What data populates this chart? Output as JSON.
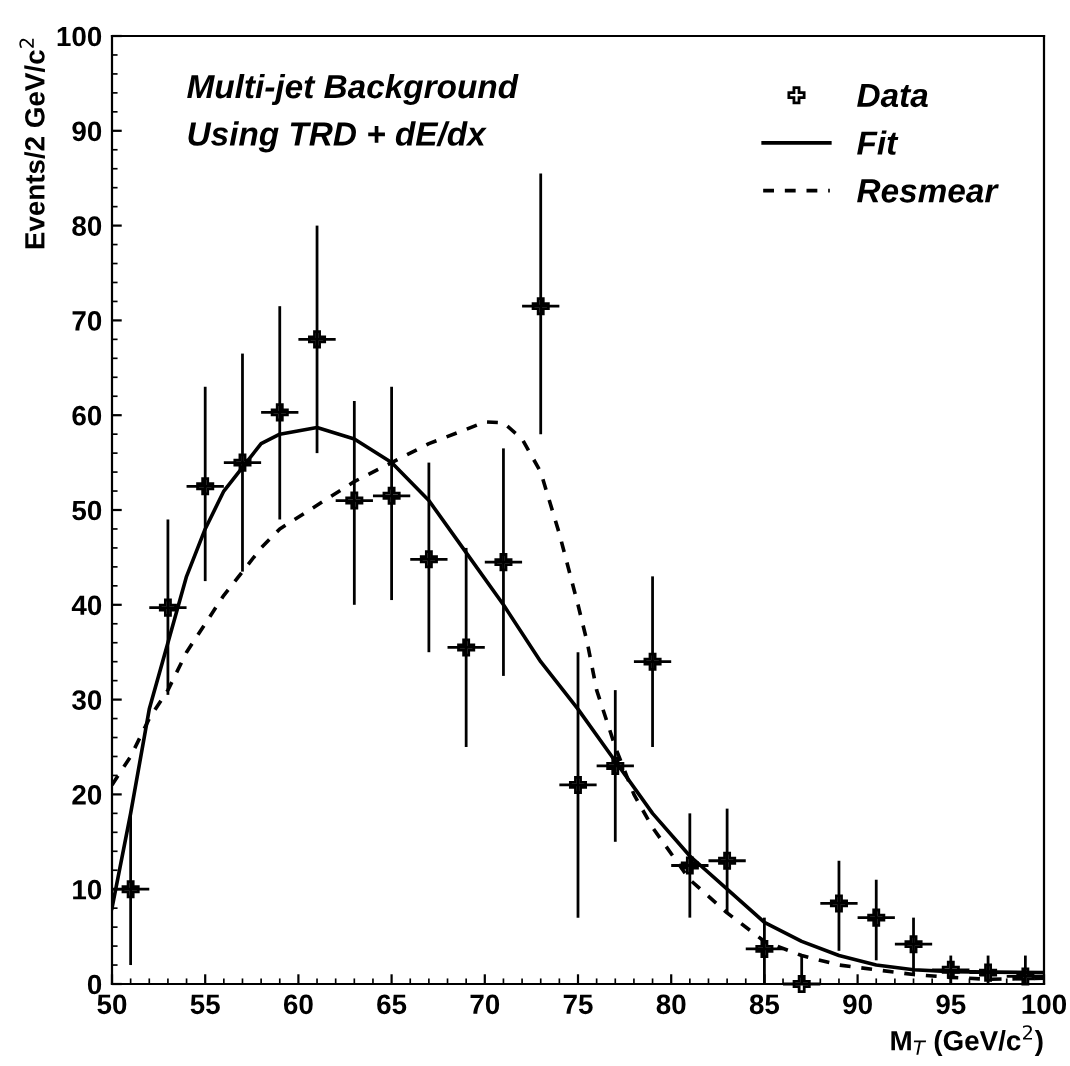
{
  "chart_data": {
    "type": "scatter",
    "xlabel": "M$_{T}$ (GeV/c$^{2}$)",
    "ylabel": "Events/2 GeV/c$^{2}$",
    "annotations": [
      "Multi-jet Background",
      "Using TRD + dE/dx"
    ],
    "xlim": [
      50,
      100
    ],
    "ylim": [
      0,
      100
    ],
    "xticks": [
      50,
      55,
      60,
      65,
      70,
      75,
      80,
      85,
      90,
      95,
      100
    ],
    "yticks": [
      0,
      10,
      20,
      30,
      40,
      50,
      60,
      70,
      80,
      90,
      100
    ],
    "grid": false,
    "legend": "top right",
    "series": [
      {
        "name": "Data",
        "marker": "cross",
        "xerrors": [
          1,
          1,
          1,
          1,
          1,
          1,
          1,
          1,
          1,
          1,
          1,
          1,
          1,
          1,
          1,
          1,
          1,
          1,
          1,
          1,
          1,
          1,
          1,
          1,
          1
        ],
        "color": "#000000",
        "x": [
          51,
          53,
          55,
          57,
          59,
          61,
          63,
          65,
          67,
          69,
          71,
          73,
          75,
          77,
          79,
          81,
          83,
          85,
          87,
          89,
          91,
          93,
          95,
          97,
          99
        ],
        "values": [
          10,
          39.7,
          52.5,
          55,
          60.3,
          68,
          51,
          51.5,
          44.8,
          35.5,
          44.5,
          71.5,
          21,
          23,
          34,
          12.5,
          13,
          3.7,
          0,
          8.5,
          7,
          4.2,
          1.5,
          1.2,
          0.8
        ],
        "errors": [
          [
            2,
            18
          ],
          [
            30.5,
            49
          ],
          [
            42.5,
            63
          ],
          [
            43.5,
            66.5
          ],
          [
            49,
            71.5
          ],
          [
            56,
            80
          ],
          [
            40,
            61.5
          ],
          [
            40.5,
            63
          ],
          [
            35,
            55
          ],
          [
            25,
            46
          ],
          [
            32.5,
            56.5
          ],
          [
            58,
            85.5
          ],
          [
            7,
            35
          ],
          [
            15,
            31
          ],
          [
            25,
            43
          ],
          [
            7,
            18
          ],
          [
            7.5,
            18.5
          ],
          [
            0,
            7
          ],
          [
            0,
            3
          ],
          [
            3.5,
            13
          ],
          [
            2.5,
            11
          ],
          [
            1,
            7
          ],
          [
            0,
            3
          ],
          [
            0,
            3
          ],
          [
            0,
            3
          ]
        ]
      },
      {
        "name": "Fit",
        "type": "line",
        "line_style": "solid",
        "color": "#000000",
        "x": [
          50,
          51,
          52,
          53,
          54,
          55,
          56,
          57,
          58,
          59,
          61,
          63,
          65,
          67,
          69,
          71,
          73,
          75,
          77,
          79,
          81,
          83,
          85,
          87,
          89,
          91,
          93,
          95,
          100
        ],
        "values": [
          8,
          18,
          29,
          36,
          43,
          48,
          52,
          54.5,
          57,
          58,
          58.7,
          57.5,
          55,
          51,
          45.5,
          40,
          34,
          29,
          23.5,
          18,
          13.5,
          10,
          6.5,
          4.5,
          3,
          2,
          1.5,
          1.3,
          1.2
        ]
      },
      {
        "name": "Resmear",
        "type": "line",
        "line_style": "dashed",
        "color": "#000000",
        "x": [
          50,
          51,
          52,
          53,
          54,
          55,
          56,
          57,
          58,
          59,
          61,
          63,
          65,
          67,
          69,
          70,
          71,
          72,
          73,
          74,
          75,
          75.5,
          76,
          77,
          78,
          79,
          81,
          83,
          85,
          87,
          89,
          91,
          93,
          95,
          97,
          100
        ],
        "values": [
          21,
          24,
          28,
          31,
          35,
          38,
          41,
          43.5,
          46,
          48,
          50.5,
          53,
          55,
          57,
          58.5,
          59.3,
          59.2,
          57.5,
          54,
          47.5,
          40,
          36,
          31,
          25,
          20,
          16.5,
          11,
          7.5,
          4.5,
          3,
          2,
          1.5,
          1,
          0.7,
          0.5,
          0.6
        ]
      }
    ]
  }
}
